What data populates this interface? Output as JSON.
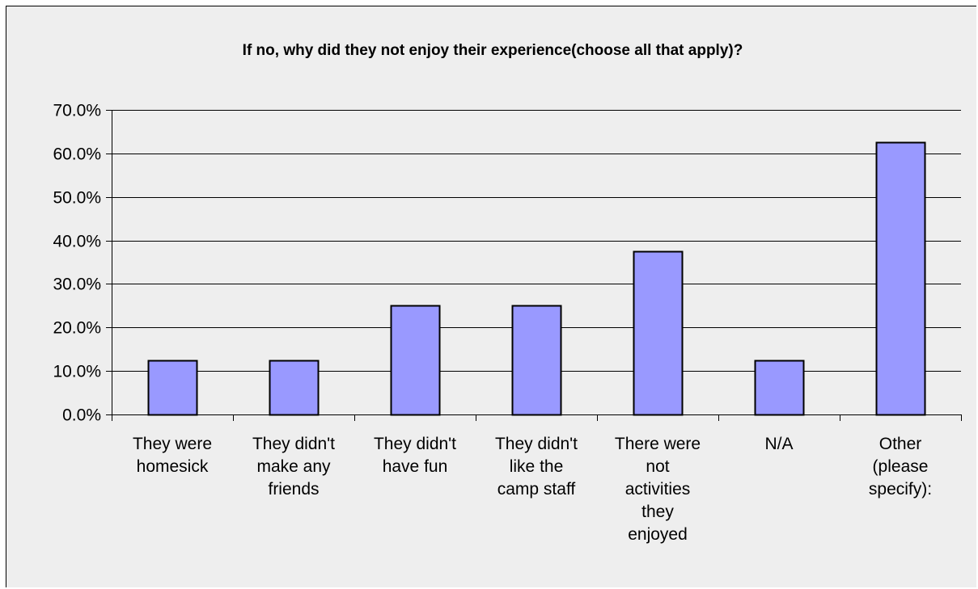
{
  "chart_data": {
    "type": "bar",
    "title": "If no, why did they not enjoy their experience(choose all that apply)?",
    "xlabel": "",
    "ylabel": "",
    "categories": [
      "They were homesick",
      "They didn't make any friends",
      "They didn't have fun",
      "They didn't like the camp staff",
      "There were not activities they enjoyed",
      "N/A",
      "Other (please specify):"
    ],
    "category_label_lines": [
      [
        "They were",
        "homesick"
      ],
      [
        "They didn't",
        "make any",
        "friends"
      ],
      [
        "They didn't",
        "have fun"
      ],
      [
        "They didn't",
        "like the",
        "camp staff"
      ],
      [
        "There were",
        "not",
        "activities",
        "they",
        "enjoyed"
      ],
      [
        "N/A"
      ],
      [
        "Other",
        "(please",
        "specify):"
      ]
    ],
    "values": [
      12.5,
      12.5,
      25.0,
      25.0,
      37.5,
      12.5,
      62.5
    ],
    "ylim": [
      0,
      70
    ],
    "y_ticks": [
      0,
      10,
      20,
      30,
      40,
      50,
      60,
      70
    ],
    "y_tick_labels": [
      "0.0%",
      "10.0%",
      "20.0%",
      "30.0%",
      "40.0%",
      "50.0%",
      "60.0%",
      "70.0%"
    ],
    "grid": true,
    "legend": "none",
    "colors": {
      "bar_fill": "#9999ff",
      "bar_stroke": "#000000",
      "plot_background": "#eeeeee",
      "gridline": "#000000"
    }
  }
}
